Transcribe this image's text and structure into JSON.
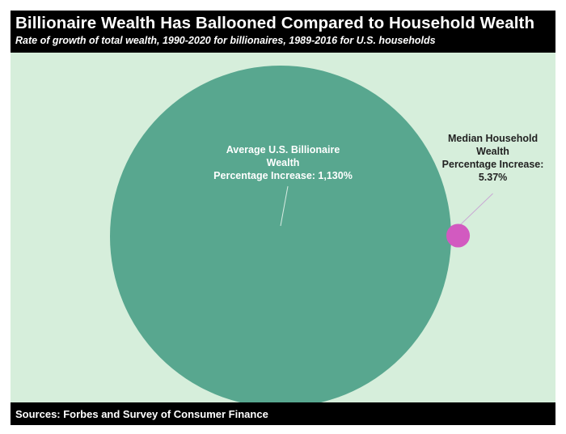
{
  "title": "Billionaire Wealth Has Ballooned Compared to Household Wealth",
  "subtitle": "Rate of growth of total wealth, 1990-2020 for billionaires, 1989-2016 for U.S. households",
  "source": "Sources: Forbes and Survey of Consumer Finance",
  "colors": {
    "background": "#d6eedb",
    "billionaire": "#58a78f",
    "household": "#d25ac0",
    "bands": "#000000"
  },
  "chart_data": {
    "type": "bubble",
    "series": [
      {
        "label_lines": [
          "Average U.S. Billionaire",
          "Wealth",
          "Percentage Increase: 1,130%"
        ],
        "value": 1130,
        "unit": "%",
        "color": "#58a78f"
      },
      {
        "label_lines": [
          "Median Household",
          "Wealth",
          "Percentage Increase:",
          "5.37%"
        ],
        "value": 5.37,
        "unit": "%",
        "color": "#d25ac0"
      }
    ]
  }
}
